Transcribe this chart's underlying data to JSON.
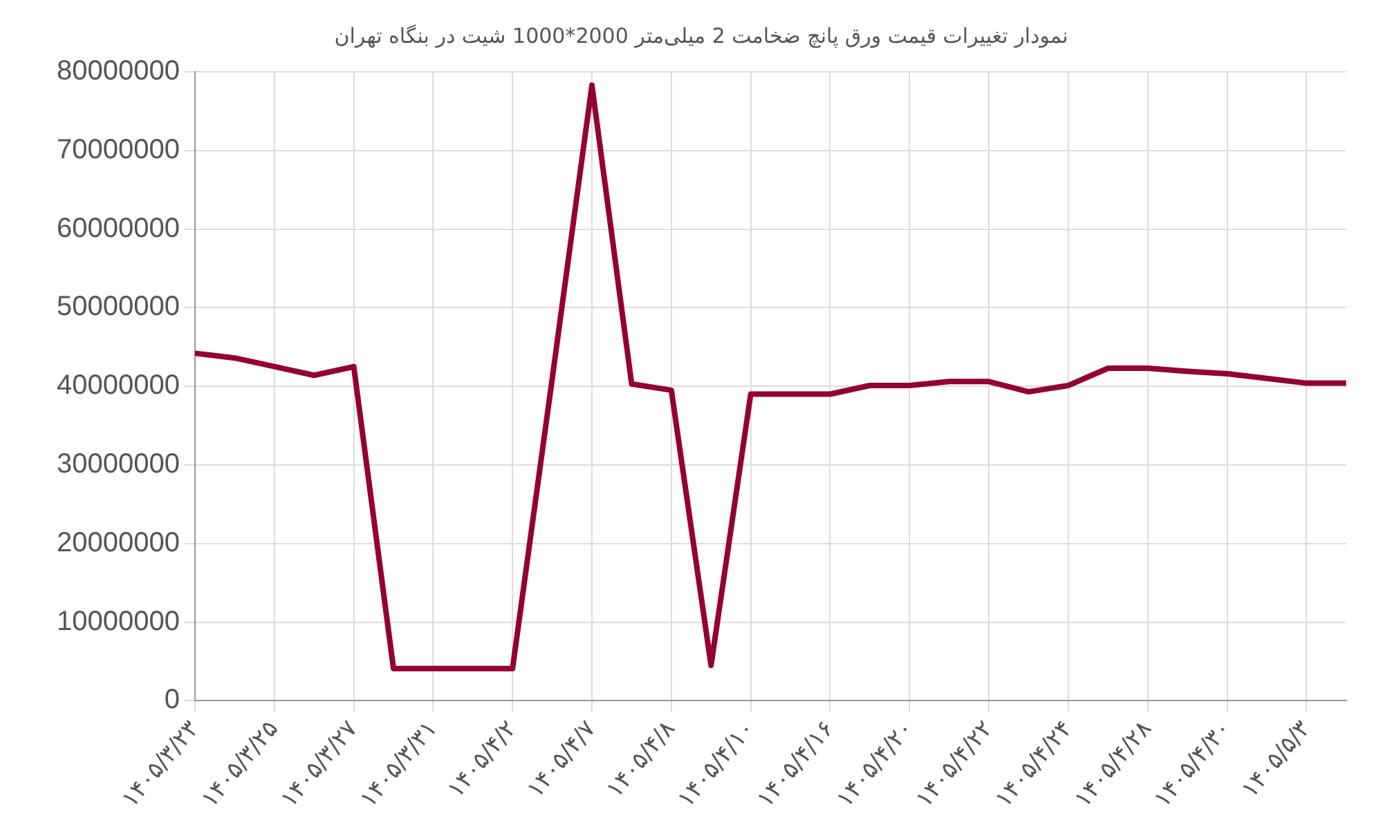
{
  "chart_data": {
    "type": "line",
    "title": "نمودار تغییرات قیمت ورق پانچ ضخامت 2 میلی‌متر 2000*1000 شیت در بنگاه تهران",
    "categories": [
      "۱۴۰۵/۳/۲۳",
      null,
      "۱۴۰۵/۳/۲۵",
      null,
      "۱۴۰۵/۳/۲۷",
      null,
      "۱۴۰۵/۳/۳۱",
      null,
      "۱۴۰۵/۴/۲",
      null,
      "۱۴۰۵/۴/۷",
      null,
      "۱۴۰۵/۴/۸",
      null,
      "۱۴۰۵/۴/۱۰",
      null,
      "۱۴۰۵/۴/۱۶",
      null,
      "۱۴۰۵/۴/۲۰",
      null,
      "۱۴۰۵/۴/۲۲",
      null,
      "۱۴۰۵/۴/۲۴",
      null,
      "۱۴۰۵/۴/۲۸",
      null,
      "۱۴۰۵/۴/۳۰",
      null,
      "۱۴۰۵/۵/۳",
      null
    ],
    "series": [
      {
        "color": "#930031",
        "values": [
          44200000,
          43600000,
          42500000,
          41400000,
          42500000,
          4100000,
          4100000,
          4100000,
          4100000,
          41000000,
          78300000,
          40300000,
          39500000,
          4500000,
          39000000,
          39000000,
          39000000,
          40100000,
          40100000,
          40600000,
          40600000,
          39300000,
          40100000,
          42300000,
          42300000,
          41900000,
          41600000,
          41000000,
          40400000,
          40400000
        ]
      }
    ],
    "ylim": [
      0,
      80000000
    ],
    "yticks": [
      0,
      10000000,
      20000000,
      30000000,
      40000000,
      50000000,
      60000000,
      70000000,
      80000000
    ],
    "grid": true,
    "legend": false,
    "marker": "none",
    "line_style": "solid"
  }
}
